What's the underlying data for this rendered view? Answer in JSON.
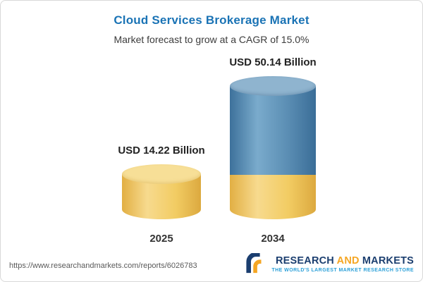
{
  "header": {
    "title": "Cloud Services Brokerage Market",
    "subtitle": "Market forecast to grow at a CAGR of 15.0%"
  },
  "chart_data": {
    "type": "bar",
    "title": "Cloud Services Brokerage Market",
    "subtitle": "Market forecast to grow at a CAGR of 15.0%",
    "categories": [
      "2025",
      "2034"
    ],
    "values": [
      14.22,
      50.14
    ],
    "value_labels": [
      "USD 14.22 Billion",
      "USD 50.14 Billion"
    ],
    "unit": "USD Billion",
    "cagr_pct": 15.0,
    "ylim": [
      0,
      55
    ],
    "grid": false,
    "legend": "none",
    "bar_colors": [
      "#f2cc63",
      "#4d86ae"
    ],
    "note": "2034 cylinder shows the 2025 value as a yellow base segment"
  },
  "footer": {
    "url": "https://www.researchandmarkets.com/reports/6026783",
    "logo": {
      "word1": "RESEARCH ",
      "word2": "AND",
      "word3": " MARKETS",
      "tagline": "THE WORLD'S LARGEST MARKET RESEARCH STORE"
    }
  },
  "colors": {
    "title_blue": "#1a73b5",
    "bar_yellow": "#f2cc63",
    "bar_blue": "#4d86ae",
    "logo_navy": "#1b3e6f",
    "logo_orange": "#f5a623",
    "tagline_blue": "#2a9fd8"
  }
}
